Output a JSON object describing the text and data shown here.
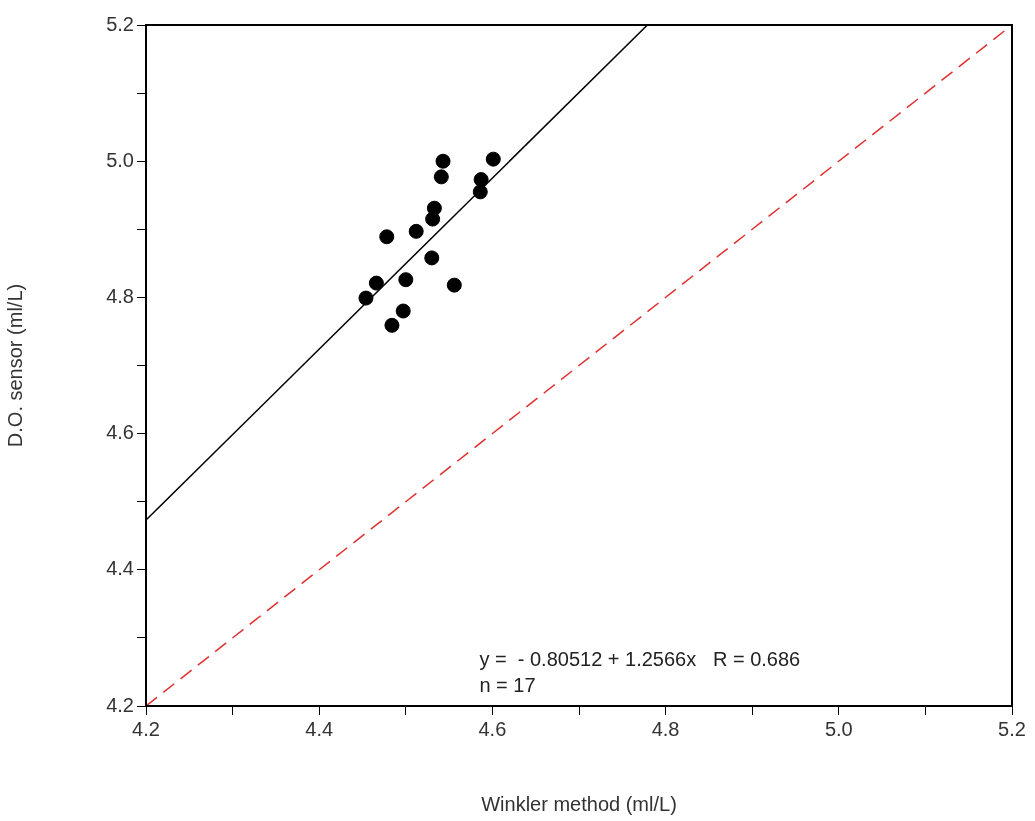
{
  "chart_data": {
    "type": "scatter",
    "xlabel": "Winkler method (ml/L)",
    "ylabel": "D.O. sensor (ml/L)",
    "xlim": [
      4.2,
      5.2
    ],
    "ylim": [
      4.2,
      5.2
    ],
    "xticks": [
      {
        "value": 4.2,
        "label": "4.2"
      },
      {
        "value": 4.3,
        "label": null
      },
      {
        "value": 4.4,
        "label": "4.4"
      },
      {
        "value": 4.5,
        "label": null
      },
      {
        "value": 4.6,
        "label": "4.6"
      },
      {
        "value": 4.7,
        "label": null
      },
      {
        "value": 4.8,
        "label": "4.8"
      },
      {
        "value": 4.9,
        "label": null
      },
      {
        "value": 5.0,
        "label": "5.0"
      },
      {
        "value": 5.1,
        "label": null
      },
      {
        "value": 5.2,
        "label": "5.2"
      }
    ],
    "yticks": [
      {
        "value": 4.2,
        "label": "4.2"
      },
      {
        "value": 4.3,
        "label": null
      },
      {
        "value": 4.4,
        "label": "4.4"
      },
      {
        "value": 4.5,
        "label": null
      },
      {
        "value": 4.6,
        "label": "4.6"
      },
      {
        "value": 4.7,
        "label": null
      },
      {
        "value": 4.8,
        "label": "4.8"
      },
      {
        "value": 4.9,
        "label": null
      },
      {
        "value": 5.0,
        "label": "5.0"
      },
      {
        "value": 5.1,
        "label": null
      },
      {
        "value": 5.2,
        "label": "5.2"
      }
    ],
    "series": [
      {
        "color": "#000000",
        "marker": "circle",
        "x": [
          4.454,
          4.466,
          4.478,
          4.484,
          4.497,
          4.5,
          4.512,
          4.53,
          4.531,
          4.533,
          4.541,
          4.543,
          4.556,
          4.586,
          4.587,
          4.601
        ],
        "values": [
          4.799,
          4.821,
          4.889,
          4.759,
          4.78,
          4.826,
          4.897,
          4.858,
          4.915,
          4.931,
          4.977,
          5.0,
          4.818,
          4.955,
          4.973,
          5.003
        ]
      },
      {
        "type": "line",
        "color": "#000000",
        "line_style": "solid",
        "marker": "none",
        "x": [
          4.2,
          4.779
        ],
        "values": [
          4.473,
          5.2
        ]
      },
      {
        "type": "line",
        "color": "#e03030",
        "line_style": "dashed",
        "marker": "none",
        "x": [
          4.2,
          5.2
        ],
        "values": [
          4.2,
          5.2
        ]
      }
    ],
    "annotations": [
      "y =  - 0.80512 + 1.2566x   R = 0.686",
      "n = 17"
    ]
  }
}
